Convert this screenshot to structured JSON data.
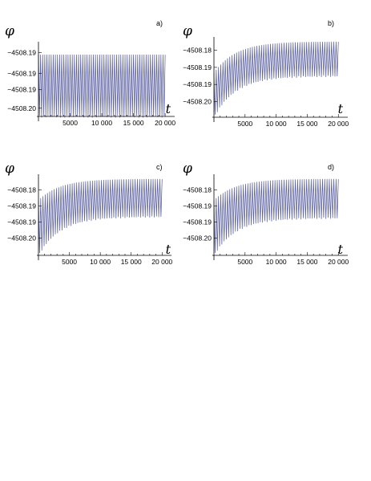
{
  "figure": {
    "panels": [
      "a)",
      "b)",
      "c)",
      "d)"
    ]
  },
  "chart_data": [
    {
      "type": "line",
      "panel_label": "a)",
      "ylabel": "φ",
      "xlabel": "t",
      "xlim": [
        0,
        21000
      ],
      "ylim": [
        -4508.2025,
        -4508.1855
      ],
      "x_ticks": [
        5000,
        10000,
        15000,
        20000
      ],
      "x_tick_labels": [
        "5000",
        "10 000",
        "15 000",
        "20 000"
      ],
      "y_ticks": [
        -4508.187,
        -4508.192,
        -4508.196,
        -4508.2005
      ],
      "y_tick_labels": [
        "−4508.19",
        "−4508.19",
        "−4508.19",
        "−4508.20"
      ],
      "color": "#5a5fa0",
      "series": [
        {
          "points": [
            [
              0,
              -4508.1875
            ],
            [
              20000,
              -4508.2025
            ]
          ]
        }
      ],
      "oscillation": {
        "min_start": -4508.2025,
        "min_end": -4508.2025,
        "max_start": -4508.1875,
        "max_end": -4508.1875,
        "cycles": 60
      }
    },
    {
      "type": "line",
      "panel_label": "b)",
      "ylabel": "φ",
      "xlabel": "t",
      "xlim": [
        0,
        21000
      ],
      "ylim": [
        -4508.2035,
        -4508.177
      ],
      "x_ticks": [
        5000,
        10000,
        15000,
        20000
      ],
      "x_tick_labels": [
        "5000",
        "10 000",
        "15 000",
        "20 000"
      ],
      "y_ticks": [
        -4508.18,
        -4508.186,
        -4508.192,
        -4508.198
      ],
      "y_tick_labels": [
        "−4508.18",
        "−4508.19",
        "−4508.19",
        "−4508.20"
      ],
      "color": "#5a5fa0",
      "series": [
        {
          "points": [
            [
              0,
              -4508.2035
            ],
            [
              20000,
              -4508.177
            ]
          ]
        }
      ],
      "oscillation": {
        "min_start": -4508.2035,
        "min_end": -4508.189,
        "max_start": -4508.188,
        "max_end": -4508.177,
        "cycles": 55
      }
    },
    {
      "type": "line",
      "panel_label": "c)",
      "ylabel": "φ",
      "xlabel": "t",
      "xlim": [
        0,
        21000
      ],
      "ylim": [
        -4508.2045,
        -4508.176
      ],
      "x_ticks": [
        5000,
        10000,
        15000,
        20000
      ],
      "x_tick_labels": [
        "5000",
        "10 000",
        "15 000",
        "20 000"
      ],
      "y_ticks": [
        -4508.18,
        -4508.186,
        -4508.192,
        -4508.198
      ],
      "y_tick_labels": [
        "−4508.18",
        "−4508.19",
        "−4508.19",
        "−4508.20"
      ],
      "color": "#5a5fa0",
      "series": [
        {
          "points": [
            [
              0,
              -4508.2045
            ],
            [
              20000,
              -4508.176
            ]
          ]
        }
      ],
      "oscillation": {
        "min_start": -4508.2045,
        "min_end": -4508.19,
        "max_start": -4508.184,
        "max_end": -4508.176,
        "cycles": 55
      }
    },
    {
      "type": "line",
      "panel_label": "d)",
      "ylabel": "φ",
      "xlabel": "t",
      "xlim": [
        0,
        21000
      ],
      "ylim": [
        -4508.2045,
        -4508.176
      ],
      "x_ticks": [
        5000,
        10000,
        15000,
        20000
      ],
      "x_tick_labels": [
        "5000",
        "10 000",
        "15 000",
        "20 000"
      ],
      "y_ticks": [
        -4508.18,
        -4508.186,
        -4508.192,
        -4508.198
      ],
      "y_tick_labels": [
        "−4508.18",
        "−4508.19",
        "−4508.19",
        "−4508.20"
      ],
      "color": "#5a5fa0",
      "series": [
        {
          "points": [
            [
              0,
              -4508.2045
            ],
            [
              20000,
              -4508.176
            ]
          ]
        }
      ],
      "oscillation": {
        "min_start": -4508.2045,
        "min_end": -4508.1905,
        "max_start": -4508.184,
        "max_end": -4508.176,
        "cycles": 55
      }
    }
  ]
}
